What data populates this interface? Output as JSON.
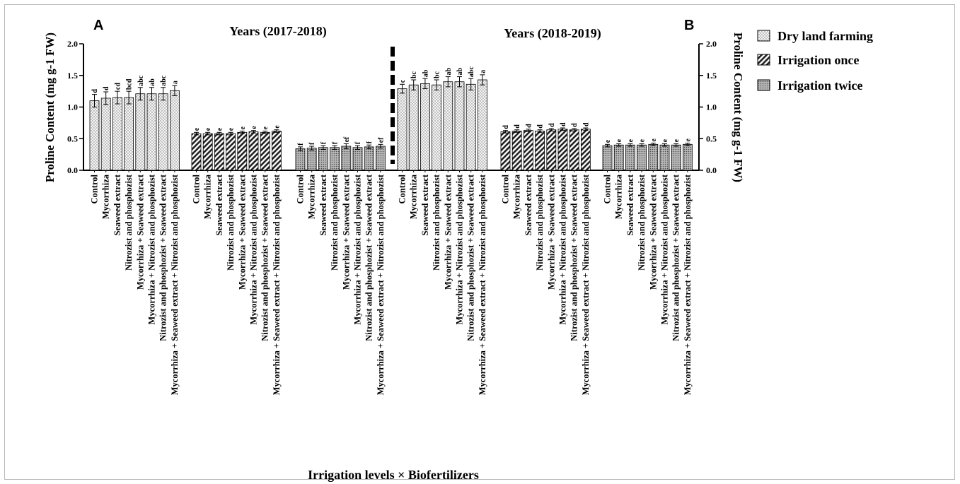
{
  "chart_data": {
    "type": "bar",
    "title": "",
    "panel_labels": [
      "A",
      "B"
    ],
    "panel_titles": [
      "Years (2017-2018)",
      "Years (2018-2019)"
    ],
    "ylabel_left": "Proline Content (mg g-1 FW)",
    "ylabel_right": "Proline Content (mg g-1 FW)",
    "xlabel": "Irrigation levels × Biofertilizers",
    "ylim": [
      0,
      2.0
    ],
    "yticks": [
      "0.0",
      "0.5",
      "1.0",
      "1.5",
      "2.0"
    ],
    "legend_position": "top-right",
    "categories": [
      "Control",
      "Mycorrhiza",
      "Seaweed extract",
      "Nitrozist and phosphozist",
      "Mycorrhiza + Seaweed extract",
      "Mycorrhiza + Nitrozist and phosphozist",
      "Nitrozist and phosphozist + Seaweed extract",
      "Mycorrhiza + Seaweed extract + Nitrozist and phosphozist"
    ],
    "series": [
      {
        "name": "Dry land farming",
        "pattern": "dots-light",
        "year": "2017-2018",
        "values": [
          1.1,
          1.14,
          1.15,
          1.15,
          1.21,
          1.21,
          1.21,
          1.26
        ],
        "errors": [
          0.1,
          0.1,
          0.1,
          0.1,
          0.1,
          0.1,
          0.1,
          0.08
        ],
        "letters": [
          "d",
          "d",
          "cd",
          "bcd",
          "abc",
          "ab",
          "abc",
          "a"
        ]
      },
      {
        "name": "Irrigation once",
        "pattern": "hatch",
        "year": "2017-2018",
        "values": [
          0.58,
          0.58,
          0.58,
          0.58,
          0.6,
          0.61,
          0.6,
          0.62
        ],
        "errors": [
          0.02,
          0.02,
          0.02,
          0.02,
          0.02,
          0.02,
          0.02,
          0.02
        ],
        "letters": [
          "e",
          "e",
          "e",
          "e",
          "e",
          "e",
          "e",
          "e"
        ]
      },
      {
        "name": "Irrigation twice",
        "pattern": "dots-dark",
        "year": "2017-2018",
        "values": [
          0.34,
          0.35,
          0.36,
          0.36,
          0.38,
          0.36,
          0.37,
          0.38
        ],
        "errors": [
          0.03,
          0.03,
          0.03,
          0.03,
          0.04,
          0.03,
          0.03,
          0.03
        ],
        "letters": [
          "f",
          "f",
          "f",
          "f",
          "ef",
          "f",
          "f",
          "ef"
        ]
      },
      {
        "name": "Dry land farming",
        "pattern": "dots-light",
        "year": "2018-2019",
        "values": [
          1.29,
          1.35,
          1.37,
          1.35,
          1.4,
          1.4,
          1.36,
          1.43
        ],
        "errors": [
          0.07,
          0.08,
          0.08,
          0.08,
          0.08,
          0.08,
          0.09,
          0.08
        ],
        "letters": [
          "c",
          "bc",
          "ab",
          "bc",
          "ab",
          "ab",
          "abc",
          "a"
        ]
      },
      {
        "name": "Irrigation once",
        "pattern": "hatch",
        "year": "2018-2019",
        "values": [
          0.61,
          0.62,
          0.63,
          0.62,
          0.64,
          0.65,
          0.64,
          0.65
        ],
        "errors": [
          0.02,
          0.02,
          0.02,
          0.02,
          0.02,
          0.02,
          0.02,
          0.02
        ],
        "letters": [
          "d",
          "d",
          "d",
          "d",
          "d",
          "d",
          "d",
          "d"
        ]
      },
      {
        "name": "Irrigation twice",
        "pattern": "dots-dark",
        "year": "2018-2019",
        "values": [
          0.39,
          0.4,
          0.4,
          0.4,
          0.41,
          0.4,
          0.4,
          0.41
        ],
        "errors": [
          0.02,
          0.02,
          0.02,
          0.02,
          0.02,
          0.02,
          0.02,
          0.02
        ],
        "letters": [
          "e",
          "e",
          "e",
          "e",
          "e",
          "e",
          "e",
          "e"
        ]
      }
    ],
    "legend": [
      "Dry land farming",
      "Irrigation once",
      "Irrigation twice"
    ]
  }
}
